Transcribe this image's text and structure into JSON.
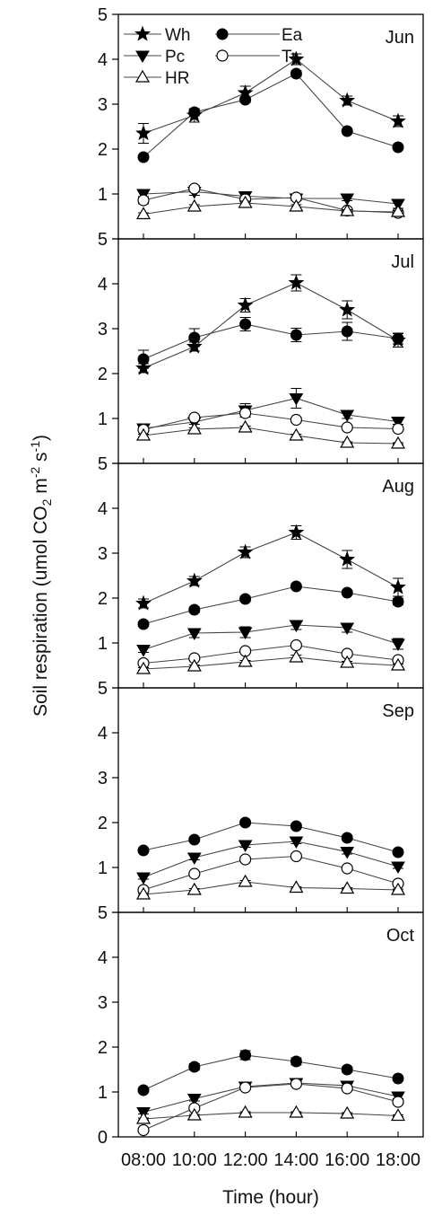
{
  "chart_data": {
    "type": "line",
    "x": [
      "08:00",
      "10:00",
      "12:00",
      "14:00",
      "16:00",
      "18:00"
    ],
    "xlabel": "Time (hour)",
    "ylabel": {
      "prefix": "Soil respiration (umol CO",
      "sub": "2",
      "mid": " m",
      "sup1": "-2",
      "mid2": " s",
      "sup2": "-1",
      "suffix": ")"
    },
    "ylim": [
      0,
      5
    ],
    "yticks": [
      "0",
      "1",
      "2",
      "3",
      "4",
      "5"
    ],
    "grid": false,
    "legend": {
      "placement": "top-left",
      "entries": [
        {
          "name": "Wh",
          "marker": "star-filled"
        },
        {
          "name": "Ea",
          "marker": "circle-filled"
        },
        {
          "name": "Pc",
          "marker": "triangle-down-filled"
        },
        {
          "name": "Tr",
          "marker": "circle-open"
        },
        {
          "name": "HR",
          "marker": "triangle-up-open"
        }
      ]
    },
    "panels": [
      {
        "month": "Jun",
        "series": [
          {
            "name": "Wh",
            "values": [
              2.35,
              2.75,
              3.25,
              4.0,
              3.08,
              2.62
            ],
            "errors": [
              0.22,
              0.15,
              0.15,
              0.12,
              0.1,
              0.12
            ]
          },
          {
            "name": "Ea",
            "values": [
              1.82,
              2.82,
              3.1,
              3.68,
              2.4,
              2.04
            ],
            "errors": [
              0.04,
              0.08,
              0.06,
              0.06,
              0.04,
              0.04
            ]
          },
          {
            "name": "Pc",
            "values": [
              1.0,
              1.05,
              0.95,
              0.9,
              0.9,
              0.78
            ],
            "errors": [
              0.1,
              0.08,
              0.06,
              0.05,
              0.05,
              0.1
            ]
          },
          {
            "name": "Tr",
            "values": [
              0.86,
              1.12,
              0.88,
              0.92,
              0.63,
              0.58
            ],
            "errors": [
              0.08,
              0.06,
              0.05,
              0.05,
              0.04,
              0.05
            ]
          },
          {
            "name": "HR",
            "values": [
              0.55,
              0.72,
              0.8,
              0.72,
              0.62,
              0.6
            ],
            "errors": [
              0.03,
              0.04,
              0.04,
              0.04,
              0.03,
              0.03
            ]
          }
        ]
      },
      {
        "month": "Jul",
        "series": [
          {
            "name": "Wh",
            "values": [
              2.12,
              2.6,
              3.52,
              4.02,
              3.42,
              2.74
            ],
            "errors": [
              0.1,
              0.1,
              0.15,
              0.18,
              0.2,
              0.15
            ]
          },
          {
            "name": "Ea",
            "values": [
              2.32,
              2.8,
              3.1,
              2.86,
              2.94,
              2.78
            ],
            "errors": [
              0.2,
              0.2,
              0.15,
              0.15,
              0.2,
              0.12
            ]
          },
          {
            "name": "Pc",
            "values": [
              0.78,
              0.92,
              1.18,
              1.45,
              1.08,
              0.93
            ],
            "errors": [
              0.05,
              0.05,
              0.15,
              0.22,
              0.08,
              0.06
            ]
          },
          {
            "name": "Tr",
            "values": [
              0.75,
              1.02,
              1.12,
              0.97,
              0.8,
              0.77
            ],
            "errors": [
              0.04,
              0.05,
              0.05,
              0.04,
              0.03,
              0.03
            ]
          },
          {
            "name": "HR",
            "values": [
              0.62,
              0.76,
              0.8,
              0.62,
              0.46,
              0.44
            ],
            "errors": [
              0.03,
              0.03,
              0.03,
              0.03,
              0.02,
              0.02
            ]
          }
        ]
      },
      {
        "month": "Aug",
        "series": [
          {
            "name": "Wh",
            "values": [
              1.88,
              2.38,
              3.02,
              3.46,
              2.86,
              2.24
            ],
            "errors": [
              0.1,
              0.1,
              0.12,
              0.15,
              0.2,
              0.2
            ]
          },
          {
            "name": "Ea",
            "values": [
              1.42,
              1.74,
              1.98,
              2.26,
              2.12,
              1.92
            ],
            "errors": [
              0.05,
              0.06,
              0.06,
              0.05,
              0.05,
              0.07
            ]
          },
          {
            "name": "Pc",
            "values": [
              0.85,
              1.22,
              1.24,
              1.4,
              1.34,
              0.98
            ],
            "errors": [
              0.06,
              0.1,
              0.12,
              0.1,
              0.1,
              0.12
            ]
          },
          {
            "name": "Tr",
            "values": [
              0.55,
              0.66,
              0.82,
              0.95,
              0.76,
              0.62
            ],
            "errors": [
              0.05,
              0.05,
              0.05,
              0.05,
              0.05,
              0.04
            ]
          },
          {
            "name": "HR",
            "values": [
              0.42,
              0.48,
              0.58,
              0.68,
              0.56,
              0.5
            ],
            "errors": [
              0.03,
              0.03,
              0.03,
              0.05,
              0.03,
              0.03
            ]
          }
        ]
      },
      {
        "month": "Sep",
        "series": [
          {
            "name": "Ea",
            "values": [
              1.38,
              1.62,
              2.0,
              1.92,
              1.66,
              1.34
            ],
            "errors": [
              0.05,
              0.05,
              0.05,
              0.05,
              0.05,
              0.05
            ]
          },
          {
            "name": "Pc",
            "values": [
              0.78,
              1.22,
              1.5,
              1.58,
              1.35,
              1.02
            ],
            "errors": [
              0.04,
              0.05,
              0.05,
              0.05,
              0.05,
              0.04
            ]
          },
          {
            "name": "Tr",
            "values": [
              0.5,
              0.86,
              1.18,
              1.25,
              0.98,
              0.64
            ],
            "errors": [
              0.03,
              0.04,
              0.05,
              0.05,
              0.04,
              0.04
            ]
          },
          {
            "name": "HR",
            "values": [
              0.4,
              0.5,
              0.68,
              0.55,
              0.53,
              0.5
            ],
            "errors": [
              0.02,
              0.03,
              0.03,
              0.02,
              0.02,
              0.02
            ]
          }
        ]
      },
      {
        "month": "Oct",
        "series": [
          {
            "name": "Ea",
            "values": [
              1.04,
              1.56,
              1.82,
              1.68,
              1.5,
              1.3
            ],
            "errors": [
              0.05,
              0.07,
              0.1,
              0.08,
              0.06,
              0.05
            ]
          },
          {
            "name": "Pc",
            "values": [
              0.55,
              0.85,
              1.12,
              1.2,
              1.14,
              0.9
            ],
            "errors": [
              0.04,
              0.05,
              0.05,
              0.05,
              0.05,
              0.05
            ]
          },
          {
            "name": "Tr",
            "values": [
              0.15,
              0.64,
              1.1,
              1.18,
              1.08,
              0.78
            ],
            "errors": [
              0.03,
              0.04,
              0.05,
              0.05,
              0.05,
              0.05
            ]
          },
          {
            "name": "HR",
            "values": [
              0.4,
              0.48,
              0.54,
              0.54,
              0.52,
              0.47
            ],
            "errors": [
              0.02,
              0.02,
              0.02,
              0.02,
              0.02,
              0.02
            ]
          }
        ]
      }
    ]
  }
}
